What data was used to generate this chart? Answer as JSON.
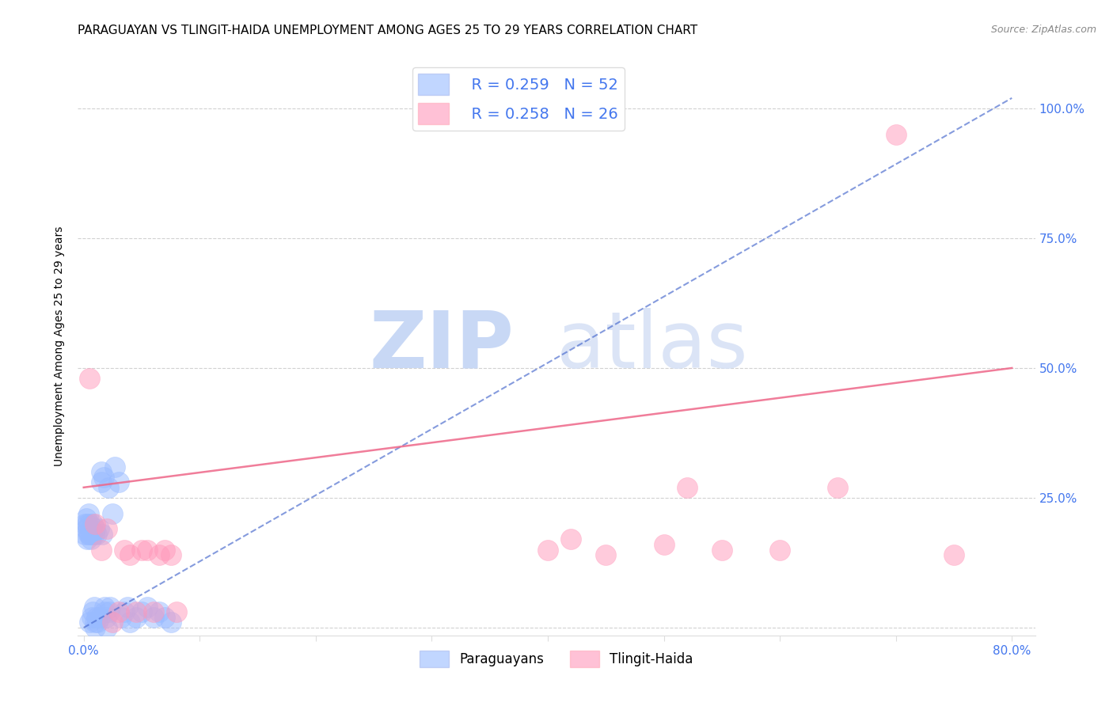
{
  "title": "PARAGUAYAN VS TLINGIT-HAIDA UNEMPLOYMENT AMONG AGES 25 TO 29 YEARS CORRELATION CHART",
  "source": "Source: ZipAtlas.com",
  "ylabel": "Unemployment Among Ages 25 to 29 years",
  "xlim": [
    -0.005,
    0.82
  ],
  "ylim": [
    -0.015,
    1.1
  ],
  "xticks": [
    0.0,
    0.1,
    0.2,
    0.3,
    0.4,
    0.5,
    0.6,
    0.7,
    0.8
  ],
  "xtick_labels": [
    "0.0%",
    "",
    "",
    "",
    "",
    "",
    "",
    "",
    "80.0%"
  ],
  "yticks": [
    0.0,
    0.25,
    0.5,
    0.75,
    1.0
  ],
  "ytick_labels_right": [
    "",
    "25.0%",
    "50.0%",
    "75.0%",
    "100.0%"
  ],
  "legend_r1": "R = 0.259",
  "legend_n1": "N = 52",
  "legend_r2": "R = 0.258",
  "legend_n2": "N = 26",
  "blue_color": "#99BBFF",
  "pink_color": "#FF99BB",
  "blue_line_color": "#4466CC",
  "pink_line_color": "#EE6688",
  "tick_color": "#4477EE",
  "title_fontsize": 11,
  "axis_label_fontsize": 10,
  "tick_fontsize": 11,
  "blue_scatter_x": [
    0.001,
    0.001,
    0.002,
    0.002,
    0.003,
    0.003,
    0.004,
    0.004,
    0.005,
    0.005,
    0.005,
    0.006,
    0.006,
    0.007,
    0.007,
    0.008,
    0.008,
    0.009,
    0.009,
    0.01,
    0.01,
    0.01,
    0.011,
    0.011,
    0.012,
    0.013,
    0.014,
    0.015,
    0.015,
    0.016,
    0.017,
    0.018,
    0.018,
    0.019,
    0.02,
    0.021,
    0.022,
    0.023,
    0.025,
    0.027,
    0.03,
    0.032,
    0.035,
    0.038,
    0.04,
    0.045,
    0.05,
    0.055,
    0.06,
    0.065,
    0.07,
    0.075
  ],
  "blue_scatter_y": [
    0.18,
    0.2,
    0.19,
    0.21,
    0.17,
    0.2,
    0.18,
    0.22,
    0.01,
    0.18,
    0.2,
    0.17,
    0.19,
    0.02,
    0.18,
    0.03,
    0.2,
    0.18,
    0.04,
    0.0,
    0.01,
    0.19,
    0.18,
    0.02,
    0.01,
    0.19,
    0.02,
    0.28,
    0.3,
    0.18,
    0.29,
    0.03,
    0.04,
    0.02,
    0.0,
    0.27,
    0.03,
    0.04,
    0.22,
    0.31,
    0.28,
    0.02,
    0.03,
    0.04,
    0.01,
    0.02,
    0.03,
    0.04,
    0.02,
    0.03,
    0.02,
    0.01
  ],
  "pink_scatter_x": [
    0.005,
    0.01,
    0.015,
    0.02,
    0.025,
    0.03,
    0.035,
    0.04,
    0.045,
    0.05,
    0.055,
    0.06,
    0.065,
    0.07,
    0.075,
    0.08,
    0.4,
    0.42,
    0.45,
    0.5,
    0.52,
    0.55,
    0.6,
    0.65,
    0.7,
    0.75
  ],
  "pink_scatter_y": [
    0.48,
    0.2,
    0.15,
    0.19,
    0.01,
    0.03,
    0.15,
    0.14,
    0.03,
    0.15,
    0.15,
    0.03,
    0.14,
    0.15,
    0.14,
    0.03,
    0.15,
    0.17,
    0.14,
    0.16,
    0.27,
    0.15,
    0.15,
    0.27,
    0.95,
    0.14
  ],
  "blue_trend_x": [
    0.0,
    0.8
  ],
  "blue_trend_y": [
    0.0,
    1.02
  ],
  "pink_trend_x": [
    0.0,
    0.8
  ],
  "pink_trend_y": [
    0.27,
    0.5
  ]
}
